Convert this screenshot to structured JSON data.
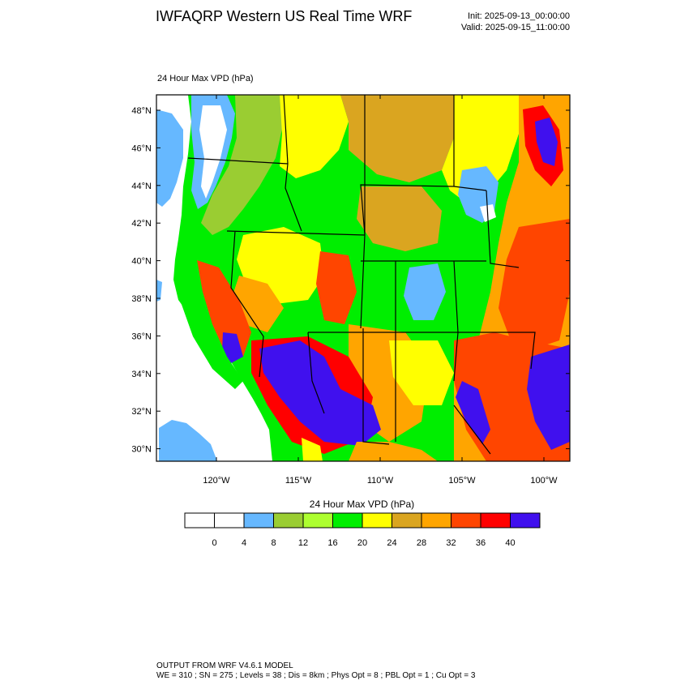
{
  "header": {
    "title": "IWFAQRP Western US Real Time WRF",
    "init": "Init: 2025-09-13_00:00:00",
    "valid": "Valid: 2025-09-15_11:00:00"
  },
  "map": {
    "field_label": "24 Hour Max VPD   (hPa)",
    "lat_labels": [
      "48°N",
      "46°N",
      "44°N",
      "42°N",
      "40°N",
      "38°N",
      "36°N",
      "34°N",
      "32°N",
      "30°N"
    ],
    "lon_labels": [
      "120°W",
      "115°W",
      "110°W",
      "105°W",
      "100°W"
    ],
    "colors": {
      "ocean": "#66b8ff",
      "lt4": "#ffffff",
      "c4_8": "#66b8ff",
      "c8_12": "#9acd32",
      "c12_16": "#adff2f",
      "c16_20": "#00ee00",
      "c20_24": "#ffff00",
      "c24_28": "#daa520",
      "c28_32": "#ffa500",
      "c32_36": "#ff4500",
      "c36_40": "#ff0000",
      "gt40": "#4010ee"
    }
  },
  "colorbar": {
    "title": "24 Hour Max VPD  (hPa)",
    "colors": [
      "#ffffff",
      "#ffffff",
      "#66b8ff",
      "#9acd32",
      "#adff2f",
      "#00ee00",
      "#ffff00",
      "#daa520",
      "#ffa500",
      "#ff4500",
      "#ff0000",
      "#4010ee"
    ],
    "labels": [
      "0",
      "4",
      "8",
      "12",
      "16",
      "20",
      "24",
      "28",
      "32",
      "36",
      "40"
    ]
  },
  "footer": {
    "line1": "OUTPUT FROM WRF V4.6.1 MODEL",
    "line2": "WE = 310 ; SN = 275 ; Levels = 38 ; Dis = 8km ; Phys Opt = 8 ; PBL Opt = 1 ; Cu Opt = 3"
  }
}
